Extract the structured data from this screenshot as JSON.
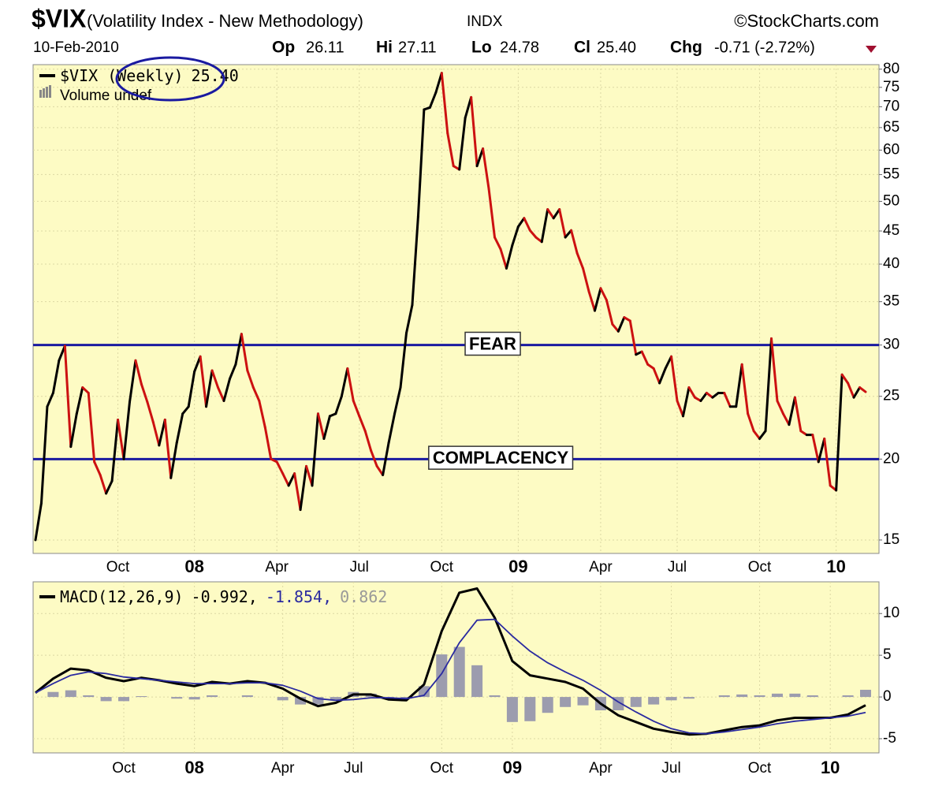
{
  "header": {
    "symbol": "$VIX",
    "description": "(Volatility Index - New Methodology)",
    "exchange": "INDX",
    "source": "©StockCharts.com",
    "date": "10-Feb-2010",
    "quote": [
      {
        "label": "Op",
        "value": "26.11"
      },
      {
        "label": "Hi",
        "value": "27.11"
      },
      {
        "label": "Lo",
        "value": "24.78"
      },
      {
        "label": "Cl",
        "value": "25.40"
      },
      {
        "label": "Chg",
        "value": "-0.71 (-2.72%)"
      }
    ]
  },
  "chart_data": [
    {
      "type": "line",
      "log_scale": true,
      "grid": true,
      "background": "#fdfbc4",
      "categories": [
        null,
        null,
        null,
        null,
        null,
        null,
        null,
        null,
        null,
        null,
        null,
        null,
        null,
        null,
        "Oct",
        null,
        null,
        null,
        null,
        null,
        null,
        null,
        null,
        null,
        null,
        null,
        null,
        "08",
        null,
        null,
        null,
        null,
        null,
        null,
        null,
        null,
        null,
        null,
        null,
        null,
        null,
        "Apr",
        null,
        null,
        null,
        null,
        null,
        null,
        null,
        null,
        null,
        null,
        null,
        null,
        null,
        "Jul",
        null,
        null,
        null,
        null,
        null,
        null,
        null,
        null,
        null,
        null,
        null,
        null,
        null,
        "Oct",
        null,
        null,
        null,
        null,
        null,
        null,
        null,
        null,
        null,
        null,
        null,
        null,
        "09",
        null,
        null,
        null,
        null,
        null,
        null,
        null,
        null,
        null,
        null,
        null,
        null,
        null,
        "Apr",
        null,
        null,
        null,
        null,
        null,
        null,
        null,
        null,
        null,
        null,
        null,
        null,
        "Jul",
        null,
        null,
        null,
        null,
        null,
        null,
        null,
        null,
        null,
        null,
        null,
        null,
        null,
        "Oct",
        null,
        null,
        null,
        null,
        null,
        null,
        null,
        null,
        null,
        null,
        null,
        null,
        "10",
        null,
        null,
        null,
        null,
        null
      ],
      "series": [
        {
          "name": "$VIX (Weekly)",
          "legend_value": "25.40",
          "color": "#000000",
          "up_color": "#000000",
          "down_color": "#cc1111",
          "values": [
            15.0,
            17.1,
            24.1,
            25.3,
            28.4,
            29.9,
            20.9,
            23.5,
            25.8,
            25.3,
            19.8,
            18.9,
            17.7,
            18.5,
            23.0,
            20.0,
            24.5,
            28.4,
            26.1,
            24.5,
            22.8,
            21.0,
            23.0,
            18.7,
            21.2,
            23.5,
            24.1,
            27.3,
            28.8,
            24.1,
            27.4,
            25.8,
            24.6,
            26.6,
            28.0,
            31.2,
            27.4,
            25.8,
            24.6,
            22.4,
            20.0,
            19.8,
            19.0,
            18.2,
            19.0,
            16.7,
            19.5,
            18.2,
            23.5,
            21.5,
            23.3,
            23.5,
            25.0,
            27.6,
            24.6,
            23.3,
            22.1,
            20.6,
            19.5,
            18.9,
            21.2,
            23.5,
            25.8,
            31.3,
            34.6,
            47.4,
            69.3,
            69.8,
            73.6,
            78.9,
            63.7,
            56.7,
            56.0,
            67.3,
            72.4,
            56.7,
            60.3,
            52.3,
            44.0,
            42.2,
            39.4,
            42.8,
            45.7,
            47.1,
            45.1,
            44.0,
            43.3,
            48.6,
            47.1,
            48.6,
            44.0,
            45.1,
            41.6,
            39.4,
            36.3,
            33.9,
            36.7,
            35.2,
            32.3,
            31.5,
            33.1,
            32.7,
            29.0,
            29.3,
            28.0,
            27.6,
            26.2,
            27.6,
            28.8,
            24.6,
            23.3,
            25.8,
            24.9,
            24.6,
            25.3,
            24.9,
            25.3,
            25.3,
            24.1,
            24.1,
            28.0,
            23.5,
            22.1,
            21.5,
            22.1,
            30.7,
            24.6,
            23.5,
            22.6,
            24.9,
            22.1,
            21.8,
            21.8,
            19.8,
            21.5,
            18.2,
            17.9,
            27.0,
            26.2,
            24.9,
            25.8,
            25.4
          ]
        }
      ],
      "volume_label": "Volume undef",
      "ylim": [
        14.3,
        81.3
      ],
      "yticks": [
        15,
        20,
        25,
        30,
        35,
        40,
        45,
        50,
        55,
        60,
        65,
        70,
        75,
        80
      ],
      "reference_lines": [
        {
          "value": 30,
          "label": "FEAR"
        },
        {
          "value": 20,
          "label": "COMPLACENCY"
        }
      ],
      "reference_color": "#1a1aa0"
    },
    {
      "type": "line",
      "grid": true,
      "background": "#fdfbc4",
      "categories": [
        null,
        null,
        null,
        null,
        null,
        "Oct",
        null,
        null,
        null,
        "08",
        null,
        null,
        null,
        null,
        "Apr",
        null,
        null,
        null,
        "Jul",
        null,
        null,
        null,
        null,
        "Oct",
        null,
        null,
        null,
        "09",
        null,
        null,
        null,
        null,
        "Apr",
        null,
        null,
        null,
        "Jul",
        null,
        null,
        null,
        null,
        "Oct",
        null,
        null,
        null,
        "10",
        null,
        null
      ],
      "series": [
        {
          "name": "MACD(12,26,9)",
          "legend_value": "-0.992,",
          "color": "#000000",
          "values": [
            0.5,
            2.2,
            3.4,
            3.2,
            2.3,
            1.9,
            2.3,
            2.0,
            1.6,
            1.3,
            1.8,
            1.6,
            1.9,
            1.7,
            1.0,
            -0.2,
            -1.1,
            -0.7,
            0.3,
            0.3,
            -0.3,
            -0.4,
            1.5,
            7.9,
            12.5,
            13.0,
            9.5,
            4.3,
            2.6,
            2.2,
            1.8,
            1.0,
            -0.8,
            -2.2,
            -3.0,
            -3.8,
            -4.2,
            -4.5,
            -4.4,
            -4.0,
            -3.6,
            -3.4,
            -2.8,
            -2.5,
            -2.5,
            -2.5,
            -2.1,
            -0.992
          ]
        },
        {
          "legend_value": "-1.854,",
          "color": "#2a2aa0",
          "values": [
            0.5,
            1.6,
            2.6,
            3.0,
            2.8,
            2.4,
            2.2,
            2.0,
            1.8,
            1.6,
            1.6,
            1.6,
            1.7,
            1.7,
            1.4,
            0.7,
            -0.2,
            -0.4,
            -0.3,
            -0.1,
            -0.1,
            -0.2,
            0.2,
            2.8,
            6.5,
            9.2,
            9.3,
            7.3,
            5.5,
            4.1,
            3.0,
            2.0,
            0.8,
            -0.6,
            -1.8,
            -2.9,
            -3.8,
            -4.3,
            -4.4,
            -4.2,
            -3.9,
            -3.6,
            -3.2,
            -2.9,
            -2.7,
            -2.5,
            -2.3,
            -1.854
          ]
        },
        {
          "legend_value": "0.862",
          "color": "#9c9cae",
          "style": "histogram",
          "values": [
            0,
            0.6,
            0.8,
            0.2,
            -0.5,
            -0.5,
            0.1,
            0,
            -0.2,
            -0.3,
            0.2,
            0,
            0.2,
            0,
            -0.4,
            -0.9,
            -0.9,
            -0.3,
            0.6,
            0.4,
            -0.2,
            -0.2,
            1.3,
            5.1,
            6.0,
            3.8,
            0.2,
            -3.0,
            -2.9,
            -1.9,
            -1.2,
            -1.0,
            -1.6,
            -1.6,
            -1.2,
            -0.9,
            -0.4,
            -0.2,
            0,
            0.2,
            0.3,
            0.2,
            0.4,
            0.4,
            0.2,
            0,
            0.2,
            0.862
          ]
        }
      ],
      "ylim": [
        -6.7,
        13.8
      ],
      "yticks": [
        -5,
        0,
        5,
        10
      ]
    }
  ]
}
